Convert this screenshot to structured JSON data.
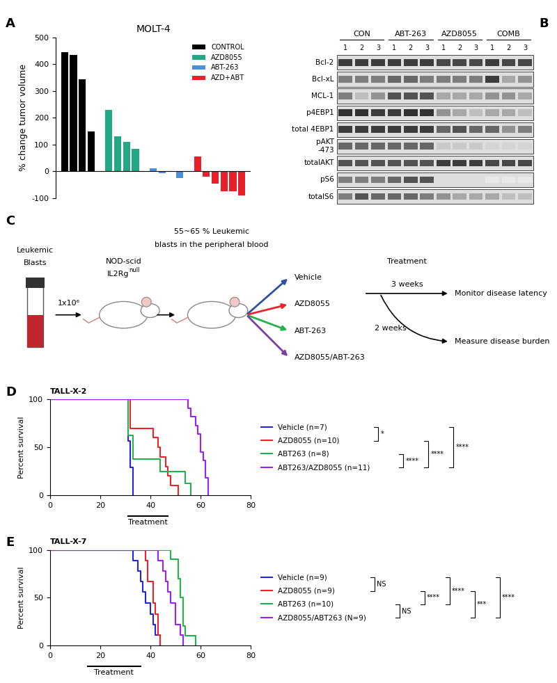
{
  "chart_data": [
    {
      "panel": "A",
      "type": "bar",
      "title": "MOLT-4",
      "y_label": "% change tumor volume",
      "ylim": [
        -100,
        500
      ],
      "yticks": [
        -100,
        0,
        100,
        200,
        300,
        400,
        500
      ],
      "legend": "upper right",
      "tick_labels": "y",
      "series": [
        {
          "name": "CONTROL",
          "color": "#000000",
          "values": [
            445,
            435,
            345,
            150
          ]
        },
        {
          "name": "AZD8055",
          "color": "#22a884",
          "values": [
            230,
            130,
            110,
            85
          ]
        },
        {
          "name": "ABT-263",
          "color": "#4a90d9",
          "values": [
            12,
            -8,
            -3,
            -25
          ]
        },
        {
          "name": "AZD+ABT",
          "color": "#e8202a",
          "values": [
            55,
            -20,
            -45,
            -75,
            -75,
            -90
          ]
        }
      ]
    },
    {
      "panel": "D",
      "type": "line",
      "title": "TALL-X-2",
      "y_label": "Percent survival",
      "xlim": [
        0,
        80
      ],
      "xticks": [
        0,
        20,
        40,
        60,
        80
      ],
      "ylim": [
        0,
        100
      ],
      "yticks": [
        0,
        50,
        100
      ],
      "line_style": "steps",
      "legend": "center left",
      "treatment": {
        "label": "Treatment",
        "start": 31,
        "end": 47
      },
      "series": [
        {
          "name": "Vehicle (n=7)",
          "color": "#2424e0",
          "x": [
            0,
            31,
            32,
            33
          ],
          "values": [
            100,
            57,
            29,
            0
          ]
        },
        {
          "name": "AZD8055 (n=10)",
          "color": "#e8252b",
          "x": [
            0,
            32,
            41,
            43,
            44,
            46,
            47,
            48,
            51
          ],
          "values": [
            100,
            70,
            60,
            50,
            40,
            30,
            20,
            10,
            0
          ]
        },
        {
          "name": "ABT263 (n=8)",
          "color": "#22b34b",
          "x": [
            0,
            31,
            33,
            44,
            54,
            56
          ],
          "values": [
            100,
            62.5,
            37.5,
            25,
            12.5,
            0
          ]
        },
        {
          "name": "ABT263/AZD8055 (n=11)",
          "color": "#a020f0",
          "x": [
            0,
            55,
            56,
            58,
            59,
            60,
            61,
            62,
            63
          ],
          "values": [
            100,
            91,
            82,
            73,
            64,
            45,
            36,
            18,
            0
          ]
        }
      ],
      "comparisons": [
        {
          "pair": [
            "Vehicle (n=7)",
            "AZD8055 (n=10)"
          ],
          "label": "*"
        },
        {
          "pair": [
            "ABT263 (n=8)",
            "ABT263/AZD8055 (n=11)"
          ],
          "label": "****"
        },
        {
          "pair": [
            "AZD8055 (n=10)",
            "ABT263/AZD8055 (n=11)"
          ],
          "label": "****"
        },
        {
          "pair": [
            "Vehicle (n=7)",
            "ABT263/AZD8055 (n=11)"
          ],
          "label": "****"
        }
      ]
    },
    {
      "panel": "E",
      "type": "line",
      "title": "TALL-X-7",
      "y_label": "Percent survival",
      "xlim": [
        0,
        80
      ],
      "xticks": [
        0,
        20,
        40,
        60,
        80
      ],
      "ylim": [
        0,
        100
      ],
      "yticks": [
        0,
        50,
        100
      ],
      "line_style": "steps",
      "legend": "center left",
      "treatment": {
        "label": "Treatment",
        "start": 15,
        "end": 36
      },
      "series": [
        {
          "name": "Vehicle (n=9)",
          "color": "#2424e0",
          "x": [
            0,
            33,
            35,
            36,
            37,
            38,
            40,
            41,
            42,
            44
          ],
          "values": [
            100,
            89,
            78,
            67,
            56,
            44,
            33,
            22,
            11,
            0
          ]
        },
        {
          "name": "AZD8055 (n=9)",
          "color": "#e8252b",
          "x": [
            0,
            38,
            39,
            41,
            42,
            43,
            44
          ],
          "values": [
            100,
            89,
            67,
            44,
            33,
            11,
            0
          ]
        },
        {
          "name": "ABT263 (n=10)",
          "color": "#22b34b",
          "x": [
            0,
            48,
            51,
            52,
            53,
            54,
            58
          ],
          "values": [
            100,
            90,
            70,
            50,
            20,
            10,
            0
          ]
        },
        {
          "name": "AZD8055/ABT263 (N=9)",
          "color": "#a020f0",
          "x": [
            0,
            43,
            45,
            46,
            47,
            48,
            50,
            52,
            53
          ],
          "values": [
            100,
            89,
            78,
            67,
            56,
            44,
            22,
            11,
            0
          ]
        }
      ],
      "comparisons": [
        {
          "pair": [
            "Vehicle (n=9)",
            "AZD8055 (n=9)"
          ],
          "label": "NS"
        },
        {
          "pair": [
            "ABT263 (n=10)",
            "AZD8055/ABT263 (N=9)"
          ],
          "label": "NS"
        },
        {
          "pair": [
            "AZD8055 (n=9)",
            "ABT263 (n=10)"
          ],
          "label": "****"
        },
        {
          "pair": [
            "Vehicle (n=9)",
            "ABT263 (n=10)"
          ],
          "label": "****"
        },
        {
          "pair": [
            "AZD8055 (n=9)",
            "AZD8055/ABT263 (N=9)"
          ],
          "label": "***"
        },
        {
          "pair": [
            "Vehicle (n=9)",
            "AZD8055/ABT263 (N=9)"
          ],
          "label": "****"
        }
      ]
    }
  ],
  "western_blot": {
    "panel": "B",
    "groups": [
      {
        "name": "CON",
        "lanes": [
          "1",
          "2",
          "3"
        ]
      },
      {
        "name": "ABT-263",
        "lanes": [
          "1",
          "2",
          "3"
        ]
      },
      {
        "name": "AZD8055",
        "lanes": [
          "1",
          "2",
          "3"
        ]
      },
      {
        "name": "COMB",
        "lanes": [
          "1",
          "2",
          "3"
        ]
      }
    ],
    "rows": [
      {
        "name": "Bcl-2",
        "intensity": [
          0.9,
          0.9,
          0.9,
          0.9,
          0.9,
          0.9,
          0.85,
          0.85,
          0.85,
          0.9,
          0.85,
          0.85
        ]
      },
      {
        "name": "Bcl-xL",
        "intensity": [
          0.6,
          0.6,
          0.6,
          0.7,
          0.7,
          0.6,
          0.6,
          0.6,
          0.6,
          0.9,
          0.4,
          0.5
        ]
      },
      {
        "name": "MCL-1",
        "intensity": [
          0.6,
          0.3,
          0.5,
          0.8,
          0.8,
          0.8,
          0.4,
          0.4,
          0.4,
          0.5,
          0.5,
          0.4
        ]
      },
      {
        "name": "p4EBP1",
        "intensity": [
          0.95,
          0.95,
          0.9,
          0.9,
          0.95,
          0.95,
          0.5,
          0.4,
          0.3,
          0.4,
          0.4,
          0.3
        ]
      },
      {
        "name": "total 4EBP1",
        "intensity": [
          0.9,
          0.9,
          0.9,
          0.9,
          0.9,
          0.9,
          0.7,
          0.8,
          0.7,
          0.7,
          0.5,
          0.6
        ]
      },
      {
        "name": "pAKT\n-473",
        "intensity": [
          0.7,
          0.7,
          0.7,
          0.7,
          0.7,
          0.7,
          0.25,
          0.25,
          0.25,
          0.2,
          0.2,
          0.2
        ]
      },
      {
        "name": "totalAKT",
        "intensity": [
          0.8,
          0.8,
          0.8,
          0.8,
          0.8,
          0.8,
          0.9,
          0.9,
          0.9,
          0.85,
          0.85,
          0.85
        ]
      },
      {
        "name": "pS6",
        "intensity": [
          0.6,
          0.6,
          0.6,
          0.7,
          0.8,
          0.8,
          0.15,
          0.15,
          0.15,
          0.1,
          0.1,
          0.1
        ]
      },
      {
        "name": "totalS6",
        "intensity": [
          0.6,
          0.8,
          0.7,
          0.7,
          0.7,
          0.6,
          0.5,
          0.4,
          0.4,
          0.4,
          0.3,
          0.3
        ]
      }
    ]
  },
  "schematic": {
    "panel": "C",
    "source": [
      "Leukemic",
      "Blasts"
    ],
    "injection": "1x10⁶",
    "mouse_strain": {
      "lines": [
        "NOD-scid",
        "IL2Rg"
      ],
      "superscript": "null"
    },
    "engraftment": [
      "55~65 % Leukemic",
      "blasts in the peripheral blood"
    ],
    "arms": [
      {
        "name": "Vehicle",
        "color": "#2f4f9f"
      },
      {
        "name": "AZD8055",
        "color": "#e8252b"
      },
      {
        "name": "ABT-263",
        "color": "#22b34b"
      },
      {
        "name": "AZD8055/ABT-263",
        "color": "#7b3fa0"
      }
    ],
    "treatment": "Treatment",
    "outcomes": [
      {
        "duration": "3 weeks",
        "label": "Monitor disease latency"
      },
      {
        "duration": "2 weeks",
        "label": "Measure disease burden"
      }
    ]
  }
}
